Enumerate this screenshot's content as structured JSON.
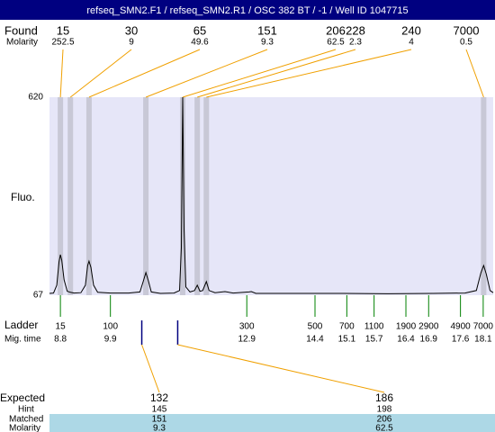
{
  "title": "refseq_SMN2.F1 / refseq_SMN2.R1 / OSC 382 BT / -1 / Well ID 1047715",
  "found": {
    "label": "Found",
    "molarity_label": "Molarity",
    "peaks": [
      {
        "size": 15,
        "molarity": 252.5,
        "time": 8.8
      },
      {
        "size": 30,
        "molarity": 9,
        "time": 9.02
      },
      {
        "size": 65,
        "molarity": 49.6,
        "time": 9.43
      },
      {
        "size": 151,
        "molarity": 9.3,
        "time": 10.68
      },
      {
        "size": 206,
        "molarity": 62.5,
        "time": 11.49
      },
      {
        "size": 228,
        "molarity": 2.3,
        "time": 11.81
      },
      {
        "size": 240,
        "molarity": 4,
        "time": 12.01
      },
      {
        "size": 7000,
        "molarity": 0.5,
        "time": 18.11
      }
    ]
  },
  "chart_data": {
    "type": "line",
    "y_label": "Fluo.",
    "color": "#000000",
    "ylim": [
      67,
      620
    ],
    "yticks": [
      67,
      620
    ],
    "xlim": [
      8.56,
      18.32
    ],
    "x": [
      8.56,
      8.65,
      8.72,
      8.77,
      8.8,
      8.83,
      8.88,
      8.95,
      9.02,
      9.1,
      9.25,
      9.35,
      9.4,
      9.43,
      9.47,
      9.53,
      9.62,
      9.9,
      10.3,
      10.55,
      10.62,
      10.68,
      10.74,
      10.8,
      11.0,
      11.3,
      11.42,
      11.46,
      11.49,
      11.52,
      11.56,
      11.65,
      11.75,
      11.81,
      11.87,
      11.93,
      12.01,
      12.07,
      12.2,
      12.42,
      12.6,
      12.95,
      13.0,
      13.1,
      14.0,
      15.0,
      16.0,
      17.0,
      17.7,
      17.95,
      18.05,
      18.11,
      18.17,
      18.25,
      18.32
    ],
    "values": [
      72,
      73,
      95,
      160,
      180,
      165,
      110,
      78,
      75,
      73,
      74,
      95,
      150,
      162,
      145,
      95,
      75,
      73,
      73,
      76,
      105,
      130,
      105,
      76,
      72,
      73,
      80,
      200,
      620,
      250,
      90,
      76,
      80,
      95,
      78,
      80,
      105,
      80,
      74,
      77,
      73,
      76,
      77,
      72,
      72,
      72,
      71,
      72,
      73,
      80,
      130,
      150,
      125,
      80,
      74
    ]
  },
  "ladder": {
    "label": "Ladder",
    "time_label": "Mig. time",
    "sizes": [
      15,
      100,
      300,
      500,
      700,
      1100,
      1900,
      2900,
      4900,
      7000
    ],
    "times": [
      8.8,
      9.9,
      12.9,
      14.4,
      15.1,
      15.7,
      16.4,
      16.9,
      17.6,
      18.1
    ]
  },
  "expected": {
    "label": "Expected",
    "hint_label": "Hint",
    "matched_label": "Matched",
    "molarity_label": "Molarity",
    "items": [
      {
        "expected": 132,
        "hint": 145,
        "matched": 151,
        "molarity": 9.3,
        "time": 10.59
      },
      {
        "expected": 186,
        "hint": 198,
        "matched": 206,
        "molarity": 62.5,
        "time": 11.38
      }
    ]
  }
}
